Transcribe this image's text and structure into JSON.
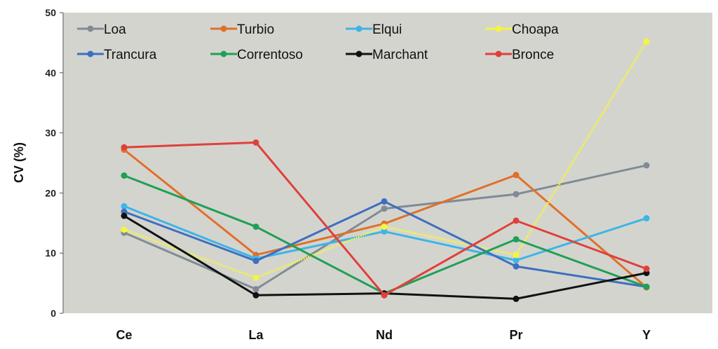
{
  "chart_data": {
    "type": "line",
    "title": "",
    "xlabel": "",
    "ylabel": "CV (%)",
    "categories": [
      "Ce",
      "La",
      "Nd",
      "Pr",
      "Y"
    ],
    "ylim": [
      0,
      50
    ],
    "yticks": [
      0,
      10,
      20,
      30,
      40,
      50
    ],
    "grid": false,
    "legend": "top-inside",
    "series": [
      {
        "name": "Loa",
        "color": "#7f8c95",
        "values": [
          13.4,
          4.0,
          17.4,
          19.8,
          24.6
        ]
      },
      {
        "name": "Turbio",
        "color": "#e0702a",
        "values": [
          27.2,
          9.7,
          14.9,
          23.0,
          4.3
        ]
      },
      {
        "name": "Elqui",
        "color": "#3db5e6",
        "values": [
          17.8,
          9.1,
          13.6,
          8.8,
          15.8
        ]
      },
      {
        "name": "Choapa",
        "color": "#f5f542",
        "values": [
          13.9,
          5.9,
          14.4,
          9.7,
          45.2
        ]
      },
      {
        "name": "Trancura",
        "color": "#3d6fbf",
        "values": [
          16.9,
          8.7,
          18.6,
          7.8,
          4.4
        ]
      },
      {
        "name": "Correntoso",
        "color": "#1fa055",
        "values": [
          22.9,
          14.4,
          3.3,
          12.3,
          4.4
        ]
      },
      {
        "name": "Marchant",
        "color": "#111111",
        "values": [
          16.2,
          3.0,
          3.3,
          2.4,
          6.7
        ]
      },
      {
        "name": "Bronce",
        "color": "#e0403a",
        "values": [
          27.6,
          28.4,
          3.0,
          15.4,
          7.4
        ]
      }
    ]
  }
}
